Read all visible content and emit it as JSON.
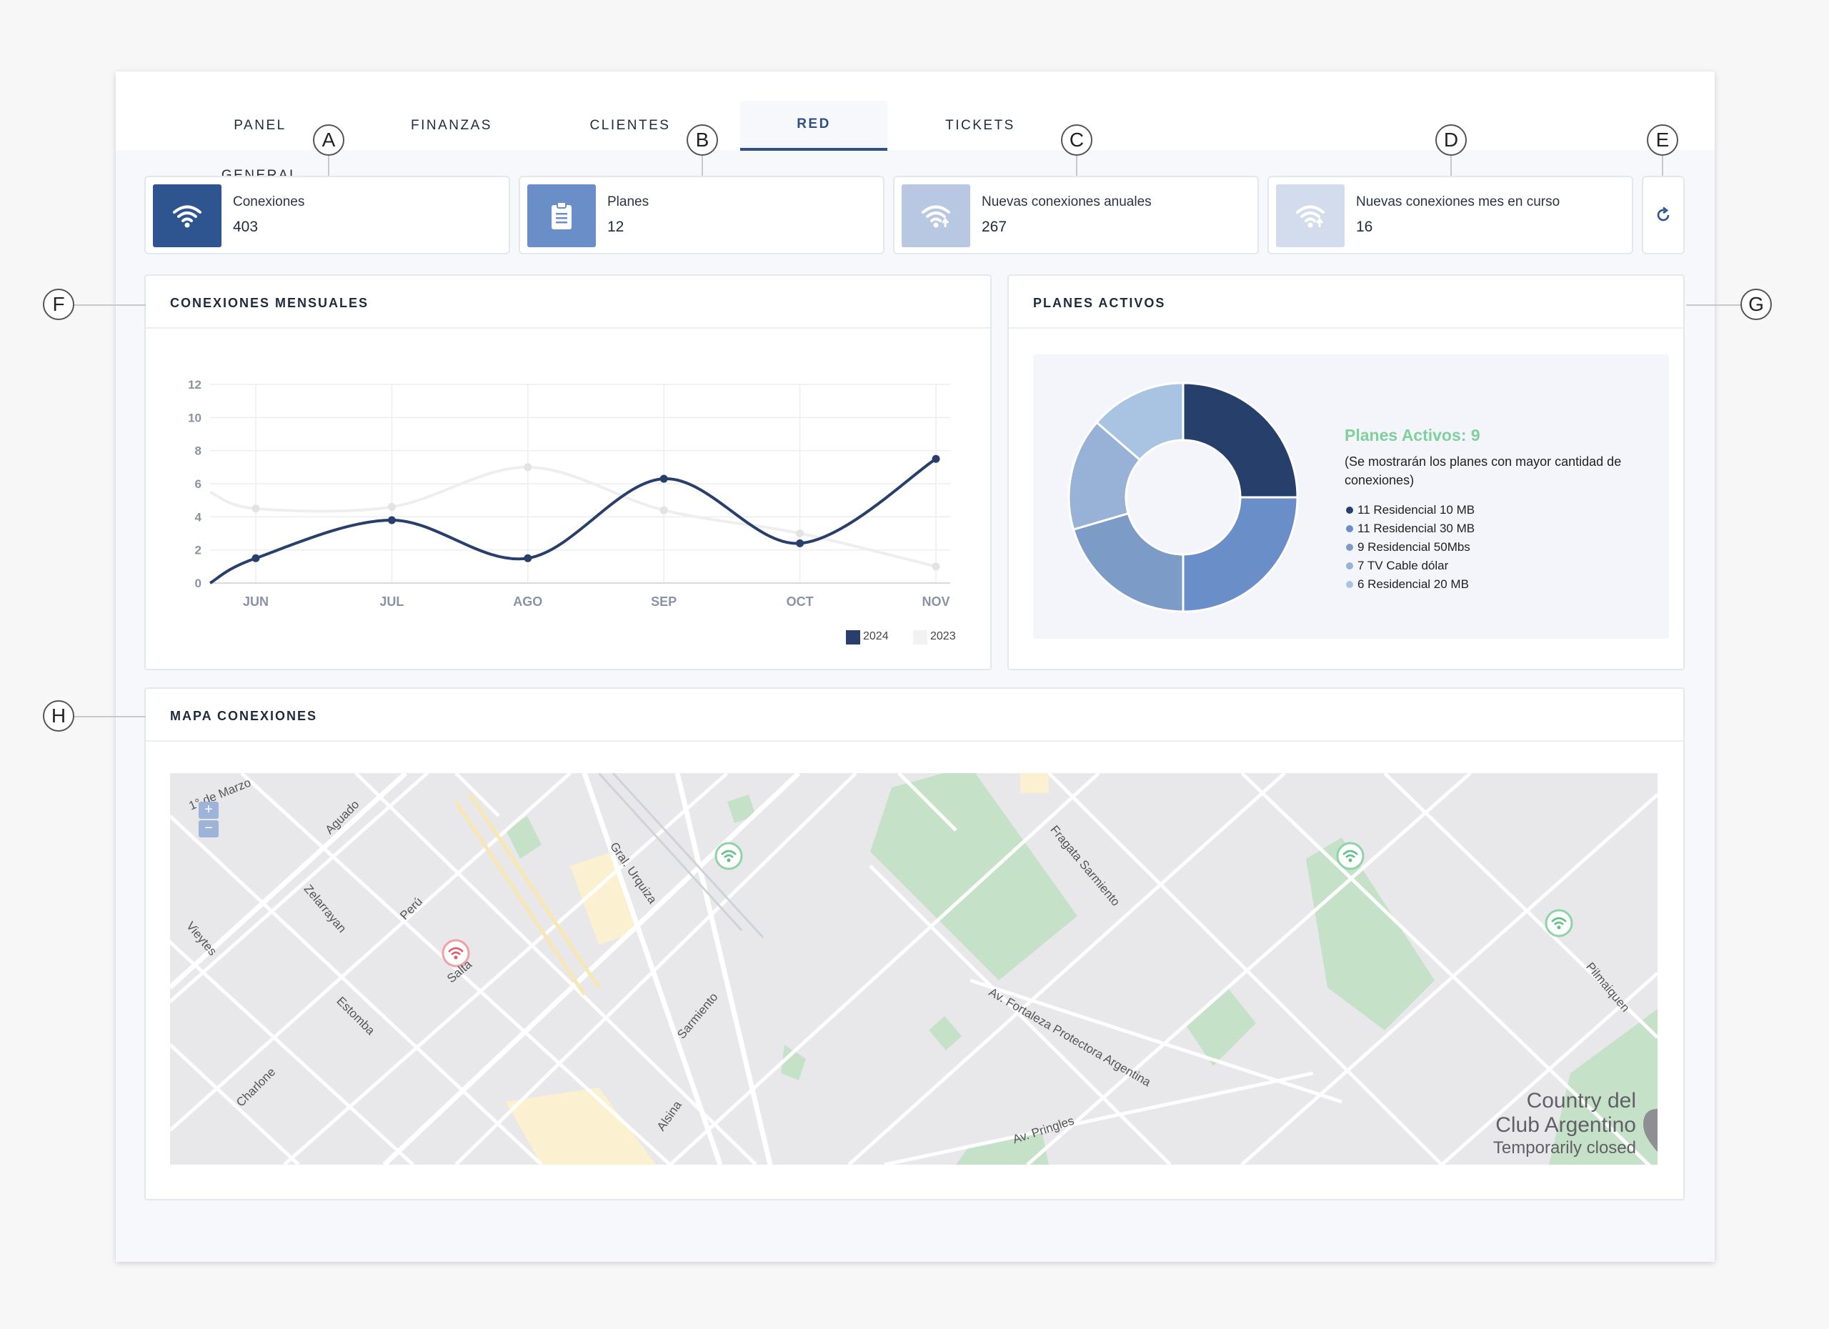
{
  "tabs": [
    {
      "label": "PANEL GENERAL",
      "active": false
    },
    {
      "label": "FINANZAS",
      "active": false
    },
    {
      "label": "CLIENTES",
      "active": false
    },
    {
      "label": "RED",
      "active": true
    },
    {
      "label": "TICKETS",
      "active": false
    }
  ],
  "callouts": [
    "A",
    "B",
    "C",
    "D",
    "E",
    "F",
    "G",
    "H"
  ],
  "stats": [
    {
      "label": "Conexiones",
      "value": "403",
      "icon": "wifi-icon",
      "color": "#2f5591"
    },
    {
      "label": "Planes",
      "value": "12",
      "icon": "clipboard-icon",
      "color": "#6a8ec8"
    },
    {
      "label": "Nuevas conexiones anuales",
      "value": "267",
      "icon": "wifi-up-icon",
      "color": "#b8c8e3"
    },
    {
      "label": "Nuevas conexiones mes en curso",
      "value": "16",
      "icon": "wifi-up-icon",
      "color": "#d3dcec"
    }
  ],
  "line_panel": {
    "title": "CONEXIONES MENSUALES"
  },
  "donut_panel": {
    "title": "PLANES ACTIVOS",
    "heading": "Planes Activos: 9",
    "subtitle": "(Se mostrarán los planes con mayor cantidad de conexiones)"
  },
  "map_panel": {
    "title": "MAPA CONEXIONES",
    "zoom_in": "+",
    "zoom_out": "−",
    "streets": [
      "1° de Marzo",
      "Aguado",
      "Zelarrayan",
      "Vieytes",
      "Perú",
      "Salta",
      "Estomba",
      "Charlone",
      "Gral. Urquiza",
      "Sarmiento",
      "Alsina",
      "Fragata Sarmiento",
      "Av. Fortaleza Protectora Argentina",
      "Av. Pringles",
      "Pilmaiquen"
    ],
    "place": {
      "name_line1": "Country del",
      "name_line2": "Club Argentino",
      "status": "Temporarily closed"
    }
  },
  "chart_data": [
    {
      "type": "line",
      "title": "",
      "xlabel": "",
      "ylabel": "",
      "categories": [
        "JUN",
        "JUL",
        "AGO",
        "SEP",
        "OCT",
        "NOV"
      ],
      "ylim": [
        0,
        12
      ],
      "yticks": [
        0,
        2,
        4,
        6,
        8,
        10,
        12
      ],
      "grid": true,
      "legend": "bottom-right",
      "series": [
        {
          "name": "2024",
          "color": "#273f6a",
          "values": [
            1.5,
            3.8,
            1.5,
            6.3,
            2.4,
            7.5
          ],
          "start": 0
        },
        {
          "name": "2023",
          "color": "#eeeeee",
          "values": [
            4.5,
            4.6,
            7.0,
            4.4,
            3.0,
            1.0
          ],
          "start": 5.5
        }
      ]
    },
    {
      "type": "pie",
      "title": "Planes Activos: 9",
      "labels": [
        "11 Residencial 10 MB",
        "11 Residencial 30 MB",
        "9 Residencial 50Mbs",
        "7 TV Cable dólar",
        "6 Residencial 20 MB"
      ],
      "values": [
        11,
        11,
        9,
        7,
        6
      ],
      "colors": [
        "#263f6b",
        "#6a8ec8",
        "#7c9bc7",
        "#97b2d6",
        "#a9c4e2"
      ],
      "legend": "right"
    }
  ]
}
